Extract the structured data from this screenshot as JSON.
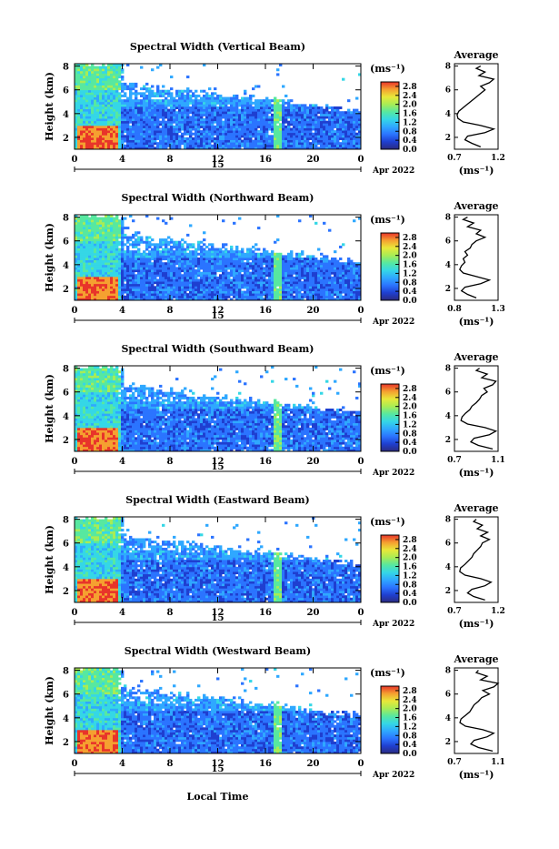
{
  "chart_data": {
    "type": "heatmap",
    "date_label": "Apr 2022",
    "day_label": "15",
    "xlabel_common": "Local Time",
    "x_ticks": [
      "0",
      "4",
      "8",
      "12",
      "16",
      "20",
      "0"
    ],
    "x_range_hours": [
      0,
      24
    ],
    "y_ticks": [
      "2",
      "4",
      "6",
      "8"
    ],
    "ylim_km": [
      1,
      8.2
    ],
    "ylabel": "Height (km)",
    "colorbar": {
      "unit": "(ms⁻¹)",
      "ticks": [
        "0.0",
        "0.4",
        "0.8",
        "1.2",
        "1.6",
        "2.0",
        "2.4",
        "2.8"
      ],
      "range": [
        0,
        3.0
      ],
      "colors": [
        "#2b2b80",
        "#1f3fd0",
        "#2b74ff",
        "#2fa8ff",
        "#35d7e6",
        "#57e8a0",
        "#a8ec55",
        "#e8e83a",
        "#f5a030",
        "#e8342a"
      ]
    },
    "average_title": "Average",
    "average_unit": "(ms⁻¹)",
    "panels": [
      {
        "title": "Spectral Width (Vertical Beam)",
        "avg_xticks": [
          "0.7",
          "1.2"
        ],
        "avg_xlim": [
          0.7,
          1.2
        ],
        "avg_profile": [
          [
            1.2,
            1.0
          ],
          [
            1.5,
            0.9
          ],
          [
            1.8,
            0.82
          ],
          [
            2.1,
            0.85
          ],
          [
            2.4,
            1.05
          ],
          [
            2.7,
            1.15
          ],
          [
            3.0,
            1.0
          ],
          [
            3.3,
            0.8
          ],
          [
            3.6,
            0.74
          ],
          [
            3.9,
            0.73
          ],
          [
            4.2,
            0.75
          ],
          [
            4.5,
            0.8
          ],
          [
            4.8,
            0.85
          ],
          [
            5.1,
            0.9
          ],
          [
            5.4,
            0.95
          ],
          [
            5.7,
            1.0
          ],
          [
            6.0,
            1.05
          ],
          [
            6.3,
            1.0
          ],
          [
            6.6,
            1.1
          ],
          [
            6.9,
            1.15
          ],
          [
            7.2,
            0.98
          ],
          [
            7.5,
            1.05
          ],
          [
            7.8,
            0.95
          ],
          [
            8.0,
            1.0
          ]
        ]
      },
      {
        "title": "Spectral Width (Northward Beam)",
        "avg_xticks": [
          "0.8",
          "1.3"
        ],
        "avg_xlim": [
          0.8,
          1.3
        ],
        "avg_profile": [
          [
            1.2,
            1.05
          ],
          [
            1.5,
            0.95
          ],
          [
            1.8,
            0.88
          ],
          [
            2.1,
            0.92
          ],
          [
            2.4,
            1.1
          ],
          [
            2.7,
            1.2
          ],
          [
            3.0,
            1.05
          ],
          [
            3.3,
            0.9
          ],
          [
            3.6,
            0.86
          ],
          [
            3.9,
            0.88
          ],
          [
            4.2,
            0.92
          ],
          [
            4.5,
            0.9
          ],
          [
            4.8,
            0.95
          ],
          [
            5.1,
            0.92
          ],
          [
            5.4,
            0.98
          ],
          [
            5.7,
            1.0
          ],
          [
            6.0,
            1.05
          ],
          [
            6.3,
            1.15
          ],
          [
            6.6,
            1.05
          ],
          [
            6.9,
            1.1
          ],
          [
            7.2,
            0.95
          ],
          [
            7.5,
            1.02
          ],
          [
            7.8,
            0.9
          ],
          [
            8.0,
            0.95
          ]
        ]
      },
      {
        "title": "Spectral Width (Southward Beam)",
        "avg_xticks": [
          "0.7",
          "1.1"
        ],
        "avg_xlim": [
          0.7,
          1.1
        ],
        "avg_profile": [
          [
            1.2,
            1.05
          ],
          [
            1.5,
            0.92
          ],
          [
            1.8,
            0.85
          ],
          [
            2.1,
            0.88
          ],
          [
            2.4,
            1.02
          ],
          [
            2.7,
            1.08
          ],
          [
            3.0,
            0.98
          ],
          [
            3.3,
            0.82
          ],
          [
            3.6,
            0.76
          ],
          [
            3.9,
            0.77
          ],
          [
            4.2,
            0.8
          ],
          [
            4.5,
            0.84
          ],
          [
            4.8,
            0.86
          ],
          [
            5.1,
            0.9
          ],
          [
            5.4,
            0.93
          ],
          [
            5.7,
            0.95
          ],
          [
            6.0,
            1.0
          ],
          [
            6.3,
            0.97
          ],
          [
            6.6,
            1.05
          ],
          [
            6.9,
            1.08
          ],
          [
            7.2,
            0.95
          ],
          [
            7.5,
            1.0
          ],
          [
            7.8,
            0.9
          ],
          [
            8.0,
            0.93
          ]
        ]
      },
      {
        "title": "Spectral Width (Eastward Beam)",
        "avg_xticks": [
          "0.7",
          "1.2"
        ],
        "avg_xlim": [
          0.7,
          1.2
        ],
        "avg_profile": [
          [
            1.2,
            1.05
          ],
          [
            1.5,
            0.92
          ],
          [
            1.8,
            0.85
          ],
          [
            2.1,
            0.9
          ],
          [
            2.4,
            1.05
          ],
          [
            2.7,
            1.12
          ],
          [
            3.0,
            1.0
          ],
          [
            3.3,
            0.82
          ],
          [
            3.6,
            0.76
          ],
          [
            3.9,
            0.77
          ],
          [
            4.2,
            0.82
          ],
          [
            4.5,
            0.86
          ],
          [
            4.8,
            0.9
          ],
          [
            5.1,
            0.92
          ],
          [
            5.4,
            0.96
          ],
          [
            5.7,
            1.0
          ],
          [
            6.0,
            1.02
          ],
          [
            6.3,
            1.1
          ],
          [
            6.6,
            1.0
          ],
          [
            6.9,
            1.08
          ],
          [
            7.2,
            0.96
          ],
          [
            7.5,
            1.02
          ],
          [
            7.8,
            0.92
          ],
          [
            8.0,
            0.95
          ]
        ]
      },
      {
        "title": "Spectral Width (Westward Beam)",
        "avg_xticks": [
          "0.7",
          "1.1"
        ],
        "avg_xlim": [
          0.7,
          1.1
        ],
        "avg_profile": [
          [
            1.2,
            1.05
          ],
          [
            1.5,
            0.92
          ],
          [
            1.8,
            0.85
          ],
          [
            2.1,
            0.88
          ],
          [
            2.4,
            1.0
          ],
          [
            2.7,
            1.06
          ],
          [
            3.0,
            0.96
          ],
          [
            3.3,
            0.8
          ],
          [
            3.6,
            0.75
          ],
          [
            3.9,
            0.76
          ],
          [
            4.2,
            0.8
          ],
          [
            4.5,
            0.84
          ],
          [
            4.8,
            0.86
          ],
          [
            5.1,
            0.88
          ],
          [
            5.4,
            0.92
          ],
          [
            5.7,
            0.95
          ],
          [
            6.0,
            1.02
          ],
          [
            6.3,
            0.96
          ],
          [
            6.6,
            1.06
          ],
          [
            6.9,
            1.1
          ],
          [
            7.2,
            0.94
          ],
          [
            7.5,
            1.0
          ],
          [
            7.8,
            0.9
          ],
          [
            8.0,
            0.92
          ]
        ]
      }
    ]
  }
}
